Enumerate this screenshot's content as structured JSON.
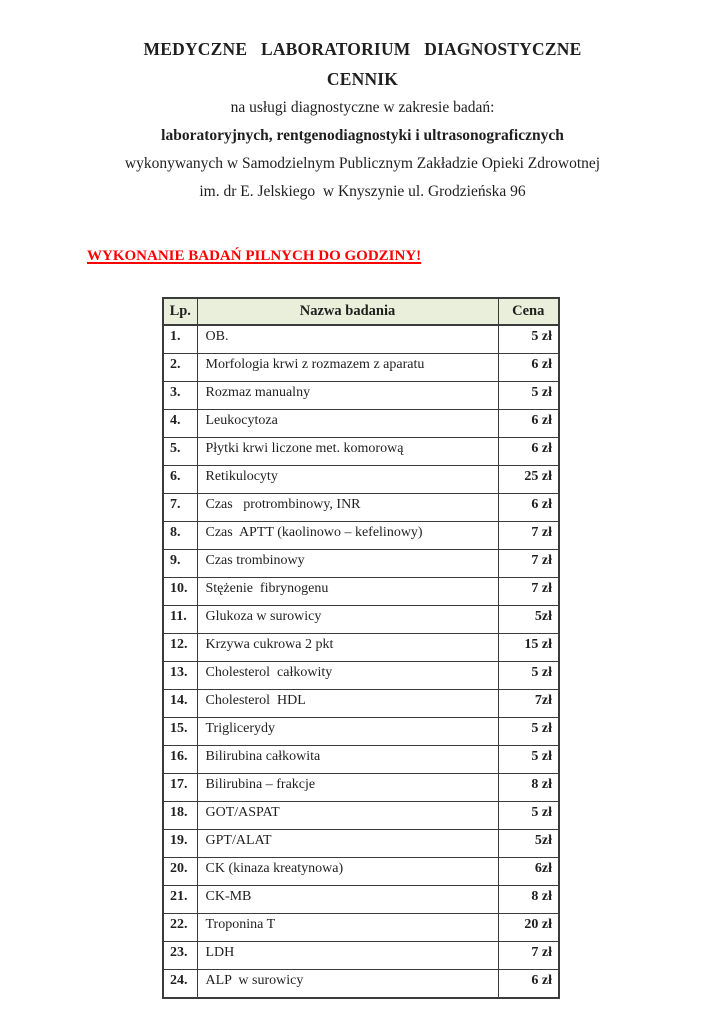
{
  "header": {
    "title": "MEDYCZNE   LABORATORIUM   DIAGNOSTYCZNE",
    "doc_type": "CENNIK",
    "intro_lines": [
      "na usługi diagnostyczne w zakresie badań:",
      "laboratoryjnych, rentgenodiagnostyki i ultrasonograficznych",
      "wykonywanych w Samodzielnym Publicznym Zakładzie Opieki Zdrowotnej",
      "im. dr E. Jelskiego  w Knyszynie ul. Grodzieńska 96"
    ],
    "urgent_notice": "WYKONANIE BADAŃ PILNYCH DO GODZINY!"
  },
  "colors": {
    "urgent_red": "#fe0000",
    "table_header_bg": "#eaefdb",
    "table_border": "#3b3b3b",
    "text": "#1f1f1f"
  },
  "table": {
    "headers": [
      "Lp.",
      "Nazwa badania",
      "Cena"
    ],
    "rows": [
      {
        "lp": "1.",
        "name": "OB.",
        "price": "5 zł"
      },
      {
        "lp": "2.",
        "name": "Morfologia krwi z rozmazem z aparatu",
        "price": "6 zł"
      },
      {
        "lp": "3.",
        "name": "Rozmaz manualny",
        "price": "5 zł"
      },
      {
        "lp": "4.",
        "name": "Leukocytoza",
        "price": "6 zł"
      },
      {
        "lp": "5.",
        "name": "Płytki krwi liczone met. komorową",
        "price": "6 zł"
      },
      {
        "lp": "6.",
        "name": "Retikulocyty",
        "price": "25 zł"
      },
      {
        "lp": "7.",
        "name": "Czas   protrombinowy, INR",
        "price": "6 zł"
      },
      {
        "lp": "8.",
        "name": "Czas  APTT (kaolinowo – kefelinowy)",
        "price": "7 zł"
      },
      {
        "lp": "9.",
        "name": "Czas trombinowy",
        "price": "7 zł"
      },
      {
        "lp": "10.",
        "name": "Stężenie  fibrynogenu",
        "price": "7 zł"
      },
      {
        "lp": "11.",
        "name": "Glukoza w surowicy",
        "price": "5zł"
      },
      {
        "lp": "12.",
        "name": "Krzywa cukrowa 2 pkt",
        "price": "15 zł"
      },
      {
        "lp": "13.",
        "name": "Cholesterol  całkowity",
        "price": "5 zł"
      },
      {
        "lp": "14.",
        "name": "Cholesterol  HDL",
        "price": "7zł"
      },
      {
        "lp": "15.",
        "name": "Triglicerydy",
        "price": "5 zł"
      },
      {
        "lp": "16.",
        "name": "Bilirubina całkowita",
        "price": "5 zł"
      },
      {
        "lp": "17.",
        "name": "Bilirubina – frakcje",
        "price": "8 zł"
      },
      {
        "lp": "18.",
        "name": "GOT/ASPAT",
        "price": "5 zł"
      },
      {
        "lp": "19.",
        "name": "GPT/ALAT",
        "price": "5zł"
      },
      {
        "lp": "20.",
        "name": "CK (kinaza kreatynowa)",
        "price": "6zł"
      },
      {
        "lp": "21.",
        "name": "CK-MB",
        "price": "8 zł"
      },
      {
        "lp": "22.",
        "name": "Troponina T",
        "price": "20 zł"
      },
      {
        "lp": "23.",
        "name": "LDH",
        "price": "7 zł"
      },
      {
        "lp": "24.",
        "name": "ALP  w surowicy",
        "price": "6 zł"
      }
    ]
  }
}
